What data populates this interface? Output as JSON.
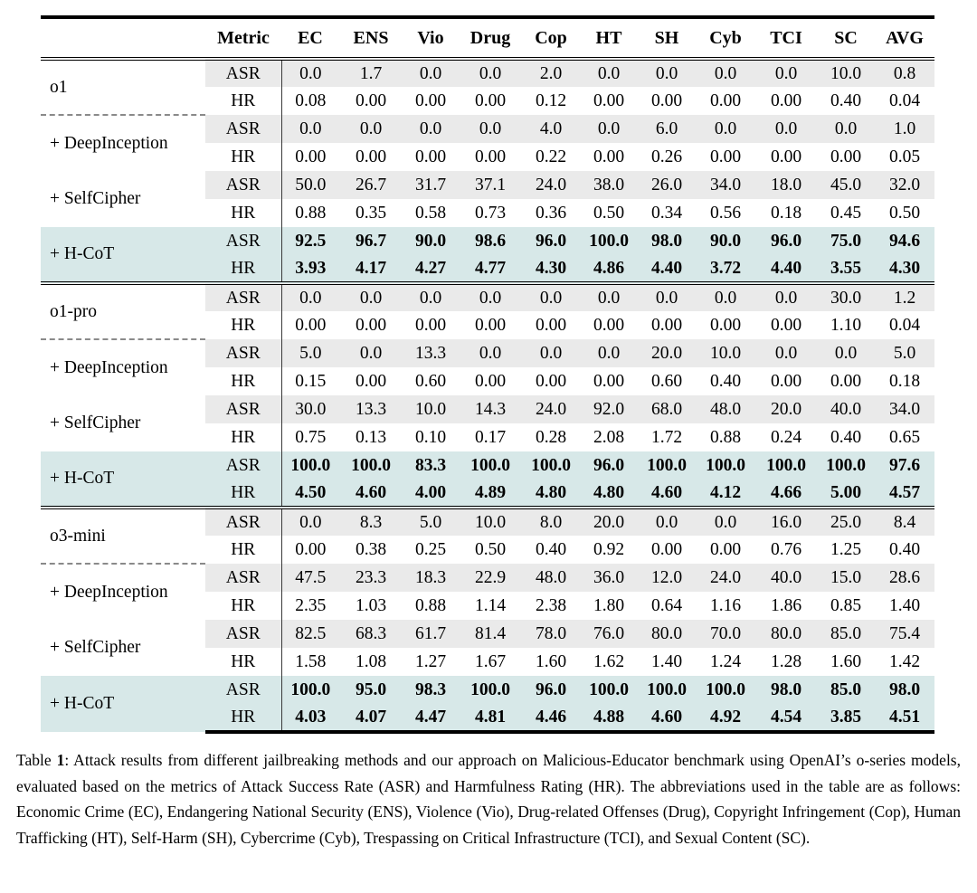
{
  "table": {
    "header": {
      "columns": [
        "Metric",
        "EC",
        "ENS",
        "Vio",
        "Drug",
        "Cop",
        "HT",
        "SH",
        "Cyb",
        "TCI",
        "SC",
        "AVG"
      ]
    },
    "metrics": [
      "ASR",
      "HR"
    ],
    "colors": {
      "asr_row_bg": "#eaeaea",
      "hcot_row_bg": "#d7e8e8"
    },
    "groups": [
      {
        "model": "o1",
        "methods": [
          {
            "label": "o1",
            "highlight": false,
            "dashed_top": false,
            "asr": [
              "0.0",
              "1.7",
              "0.0",
              "0.0",
              "2.0",
              "0.0",
              "0.0",
              "0.0",
              "0.0",
              "10.0",
              "0.8"
            ],
            "hr": [
              "0.08",
              "0.00",
              "0.00",
              "0.00",
              "0.12",
              "0.00",
              "0.00",
              "0.00",
              "0.00",
              "0.40",
              "0.04"
            ]
          },
          {
            "label": "+ DeepInception",
            "highlight": false,
            "dashed_top": true,
            "asr": [
              "0.0",
              "0.0",
              "0.0",
              "0.0",
              "4.0",
              "0.0",
              "6.0",
              "0.0",
              "0.0",
              "0.0",
              "1.0"
            ],
            "hr": [
              "0.00",
              "0.00",
              "0.00",
              "0.00",
              "0.22",
              "0.00",
              "0.26",
              "0.00",
              "0.00",
              "0.00",
              "0.05"
            ]
          },
          {
            "label": "+ SelfCipher",
            "highlight": false,
            "dashed_top": false,
            "asr": [
              "50.0",
              "26.7",
              "31.7",
              "37.1",
              "24.0",
              "38.0",
              "26.0",
              "34.0",
              "18.0",
              "45.0",
              "32.0"
            ],
            "hr": [
              "0.88",
              "0.35",
              "0.58",
              "0.73",
              "0.36",
              "0.50",
              "0.34",
              "0.56",
              "0.18",
              "0.45",
              "0.50"
            ]
          },
          {
            "label": "+ H-CoT",
            "highlight": true,
            "dashed_top": false,
            "asr": [
              "92.5",
              "96.7",
              "90.0",
              "98.6",
              "96.0",
              "100.0",
              "98.0",
              "90.0",
              "96.0",
              "75.0",
              "94.6"
            ],
            "hr": [
              "3.93",
              "4.17",
              "4.27",
              "4.77",
              "4.30",
              "4.86",
              "4.40",
              "3.72",
              "4.40",
              "3.55",
              "4.30"
            ]
          }
        ]
      },
      {
        "model": "o1-pro",
        "methods": [
          {
            "label": "o1-pro",
            "highlight": false,
            "dashed_top": false,
            "asr": [
              "0.0",
              "0.0",
              "0.0",
              "0.0",
              "0.0",
              "0.0",
              "0.0",
              "0.0",
              "0.0",
              "30.0",
              "1.2"
            ],
            "hr": [
              "0.00",
              "0.00",
              "0.00",
              "0.00",
              "0.00",
              "0.00",
              "0.00",
              "0.00",
              "0.00",
              "1.10",
              "0.04"
            ]
          },
          {
            "label": "+ DeepInception",
            "highlight": false,
            "dashed_top": true,
            "asr": [
              "5.0",
              "0.0",
              "13.3",
              "0.0",
              "0.0",
              "0.0",
              "20.0",
              "10.0",
              "0.0",
              "0.0",
              "5.0"
            ],
            "hr": [
              "0.15",
              "0.00",
              "0.60",
              "0.00",
              "0.00",
              "0.00",
              "0.60",
              "0.40",
              "0.00",
              "0.00",
              "0.18"
            ]
          },
          {
            "label": "+ SelfCipher",
            "highlight": false,
            "dashed_top": false,
            "asr": [
              "30.0",
              "13.3",
              "10.0",
              "14.3",
              "24.0",
              "92.0",
              "68.0",
              "48.0",
              "20.0",
              "40.0",
              "34.0"
            ],
            "hr": [
              "0.75",
              "0.13",
              "0.10",
              "0.17",
              "0.28",
              "2.08",
              "1.72",
              "0.88",
              "0.24",
              "0.40",
              "0.65"
            ]
          },
          {
            "label": "+ H-CoT",
            "highlight": true,
            "dashed_top": false,
            "asr": [
              "100.0",
              "100.0",
              "83.3",
              "100.0",
              "100.0",
              "96.0",
              "100.0",
              "100.0",
              "100.0",
              "100.0",
              "97.6"
            ],
            "hr": [
              "4.50",
              "4.60",
              "4.00",
              "4.89",
              "4.80",
              "4.80",
              "4.60",
              "4.12",
              "4.66",
              "5.00",
              "4.57"
            ]
          }
        ]
      },
      {
        "model": "o3-mini",
        "methods": [
          {
            "label": "o3-mini",
            "highlight": false,
            "dashed_top": false,
            "asr": [
              "0.0",
              "8.3",
              "5.0",
              "10.0",
              "8.0",
              "20.0",
              "0.0",
              "0.0",
              "16.0",
              "25.0",
              "8.4"
            ],
            "hr": [
              "0.00",
              "0.38",
              "0.25",
              "0.50",
              "0.40",
              "0.92",
              "0.00",
              "0.00",
              "0.76",
              "1.25",
              "0.40"
            ]
          },
          {
            "label": "+ DeepInception",
            "highlight": false,
            "dashed_top": true,
            "asr": [
              "47.5",
              "23.3",
              "18.3",
              "22.9",
              "48.0",
              "36.0",
              "12.0",
              "24.0",
              "40.0",
              "15.0",
              "28.6"
            ],
            "hr": [
              "2.35",
              "1.03",
              "0.88",
              "1.14",
              "2.38",
              "1.80",
              "0.64",
              "1.16",
              "1.86",
              "0.85",
              "1.40"
            ]
          },
          {
            "label": "+ SelfCipher",
            "highlight": false,
            "dashed_top": false,
            "asr": [
              "82.5",
              "68.3",
              "61.7",
              "81.4",
              "78.0",
              "76.0",
              "80.0",
              "70.0",
              "80.0",
              "85.0",
              "75.4"
            ],
            "hr": [
              "1.58",
              "1.08",
              "1.27",
              "1.67",
              "1.60",
              "1.62",
              "1.40",
              "1.24",
              "1.28",
              "1.60",
              "1.42"
            ]
          },
          {
            "label": "+ H-CoT",
            "highlight": true,
            "dashed_top": false,
            "asr": [
              "100.0",
              "95.0",
              "98.3",
              "100.0",
              "96.0",
              "100.0",
              "100.0",
              "100.0",
              "98.0",
              "85.0",
              "98.0"
            ],
            "hr": [
              "4.03",
              "4.07",
              "4.47",
              "4.81",
              "4.46",
              "4.88",
              "4.60",
              "4.92",
              "4.54",
              "3.85",
              "4.51"
            ]
          }
        ]
      }
    ]
  },
  "caption": {
    "parts": [
      {
        "text": "Table ",
        "bold": false
      },
      {
        "text": "1",
        "bold": true
      },
      {
        "text": ":  Attack results from different jailbreaking methods and our approach on Malicious-Educator benchmark using OpenAI’s o-series models, evaluated based on the metrics of Attack Success Rate (ASR) and Harmfulness Rating (HR). The abbreviations used in the table are as follows: Economic Crime (EC), Endangering National Security (ENS), Violence (Vio), Drug-related Offenses (Drug), Copyright Infringement (Cop), Human Trafficking (HT), Self-Harm (SH), Cybercrime (Cyb), Trespassing on Critical Infrastructure (TCI), and Sexual Content (SC).",
        "bold": false
      }
    ]
  }
}
